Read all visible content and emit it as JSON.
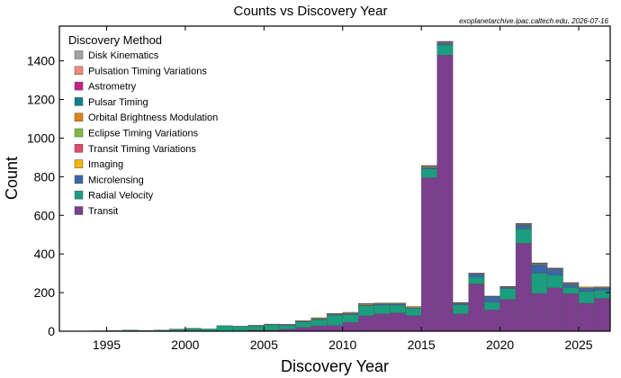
{
  "chart_data": {
    "type": "bar",
    "stacked": true,
    "title": "Counts vs Discovery Year",
    "credit": "exoplanetarchive.ipac.caltech.edu, 2026-07-16",
    "xlabel": "Discovery Year",
    "ylabel": "Count",
    "xlim": [
      1992,
      2027
    ],
    "ylim": [
      0,
      1580
    ],
    "xticks": [
      1995,
      2000,
      2005,
      2010,
      2015,
      2020,
      2025
    ],
    "yticks": [
      0,
      200,
      400,
      600,
      800,
      1000,
      1200,
      1400
    ],
    "legend_title": "Discovery Method",
    "legend_position": "top-left",
    "grid": false,
    "x": [
      1992,
      1993,
      1994,
      1995,
      1996,
      1997,
      1998,
      1999,
      2000,
      2001,
      2002,
      2003,
      2004,
      2005,
      2006,
      2007,
      2008,
      2009,
      2010,
      2011,
      2012,
      2013,
      2014,
      2015,
      2016,
      2017,
      2018,
      2019,
      2020,
      2021,
      2022,
      2023,
      2024,
      2025,
      2026
    ],
    "series": [
      {
        "name": "Transit",
        "color": "#7b3f8e",
        "values": [
          0,
          0,
          0,
          0,
          0,
          0,
          0,
          0,
          0,
          0,
          1,
          1,
          5,
          5,
          10,
          20,
          28,
          30,
          45,
          80,
          90,
          95,
          80,
          795,
          1430,
          90,
          245,
          110,
          165,
          455,
          195,
          225,
          195,
          145,
          170
        ]
      },
      {
        "name": "Radial Velocity",
        "color": "#1a9e7e",
        "values": [
          0,
          1,
          1,
          3,
          6,
          4,
          6,
          10,
          13,
          12,
          28,
          24,
          22,
          28,
          20,
          28,
          32,
          52,
          40,
          52,
          45,
          40,
          38,
          45,
          52,
          46,
          35,
          40,
          55,
          75,
          105,
          65,
          32,
          60,
          42
        ]
      },
      {
        "name": "Microlensing",
        "color": "#3a67a8",
        "values": [
          0,
          0,
          0,
          0,
          0,
          0,
          0,
          0,
          0,
          0,
          0,
          1,
          2,
          3,
          4,
          4,
          5,
          6,
          8,
          5,
          7,
          7,
          4,
          10,
          12,
          8,
          17,
          28,
          8,
          20,
          45,
          30,
          18,
          18,
          12
        ]
      },
      {
        "name": "Imaging",
        "color": "#f2b701",
        "values": [
          0,
          0,
          0,
          0,
          0,
          0,
          0,
          0,
          0,
          0,
          0,
          0,
          2,
          1,
          2,
          3,
          4,
          3,
          4,
          4,
          3,
          3,
          5,
          4,
          3,
          2,
          2,
          2,
          2,
          3,
          4,
          3,
          4,
          4,
          3
        ]
      },
      {
        "name": "Transit Timing Variations",
        "color": "#e04a6a",
        "values": [
          0,
          0,
          0,
          0,
          0,
          0,
          0,
          0,
          0,
          0,
          0,
          0,
          0,
          0,
          0,
          0,
          0,
          0,
          0,
          0,
          0,
          0,
          0,
          2,
          1,
          1,
          1,
          1,
          1,
          2,
          1,
          1,
          1,
          1,
          1
        ]
      },
      {
        "name": "Eclipse Timing Variations",
        "color": "#7fbc41",
        "values": [
          0,
          0,
          0,
          0,
          0,
          0,
          0,
          0,
          0,
          0,
          0,
          0,
          0,
          0,
          0,
          0,
          1,
          1,
          1,
          1,
          0,
          1,
          1,
          1,
          0,
          0,
          0,
          0,
          0,
          1,
          1,
          0,
          0,
          0,
          0
        ]
      },
      {
        "name": "Orbital Brightness Modulation",
        "color": "#e08214",
        "values": [
          0,
          0,
          0,
          0,
          0,
          0,
          0,
          0,
          0,
          0,
          0,
          0,
          0,
          0,
          0,
          0,
          0,
          0,
          0,
          1,
          1,
          0,
          0,
          1,
          2,
          1,
          1,
          0,
          1,
          1,
          1,
          2,
          1,
          1,
          1
        ]
      },
      {
        "name": "Pulsar Timing",
        "color": "#117f8c",
        "values": [
          1,
          0,
          1,
          0,
          0,
          0,
          0,
          0,
          2,
          0,
          0,
          0,
          0,
          0,
          0,
          0,
          0,
          0,
          0,
          1,
          0,
          0,
          0,
          0,
          0,
          1,
          0,
          1,
          0,
          1,
          1,
          0,
          0,
          0,
          0
        ]
      },
      {
        "name": "Astrometry",
        "color": "#c71e87",
        "values": [
          0,
          0,
          0,
          0,
          0,
          0,
          0,
          0,
          0,
          0,
          0,
          0,
          0,
          0,
          0,
          0,
          0,
          0,
          0,
          0,
          0,
          0,
          0,
          0,
          0,
          0,
          0,
          0,
          0,
          0,
          1,
          1,
          1,
          0,
          1
        ]
      },
      {
        "name": "Pulsation Timing Variations",
        "color": "#f08a78",
        "values": [
          0,
          0,
          0,
          0,
          0,
          0,
          0,
          1,
          0,
          0,
          0,
          0,
          0,
          0,
          0,
          0,
          0,
          0,
          0,
          0,
          0,
          0,
          0,
          0,
          1,
          0,
          0,
          0,
          0,
          0,
          0,
          0,
          0,
          0,
          0
        ]
      },
      {
        "name": "Disk Kinematics",
        "color": "#a3a3a3",
        "values": [
          0,
          0,
          0,
          0,
          0,
          0,
          0,
          0,
          0,
          0,
          0,
          0,
          0,
          0,
          0,
          0,
          0,
          0,
          0,
          0,
          0,
          0,
          0,
          0,
          0,
          0,
          0,
          0,
          0,
          0,
          0,
          0,
          0,
          0,
          0
        ]
      }
    ]
  }
}
